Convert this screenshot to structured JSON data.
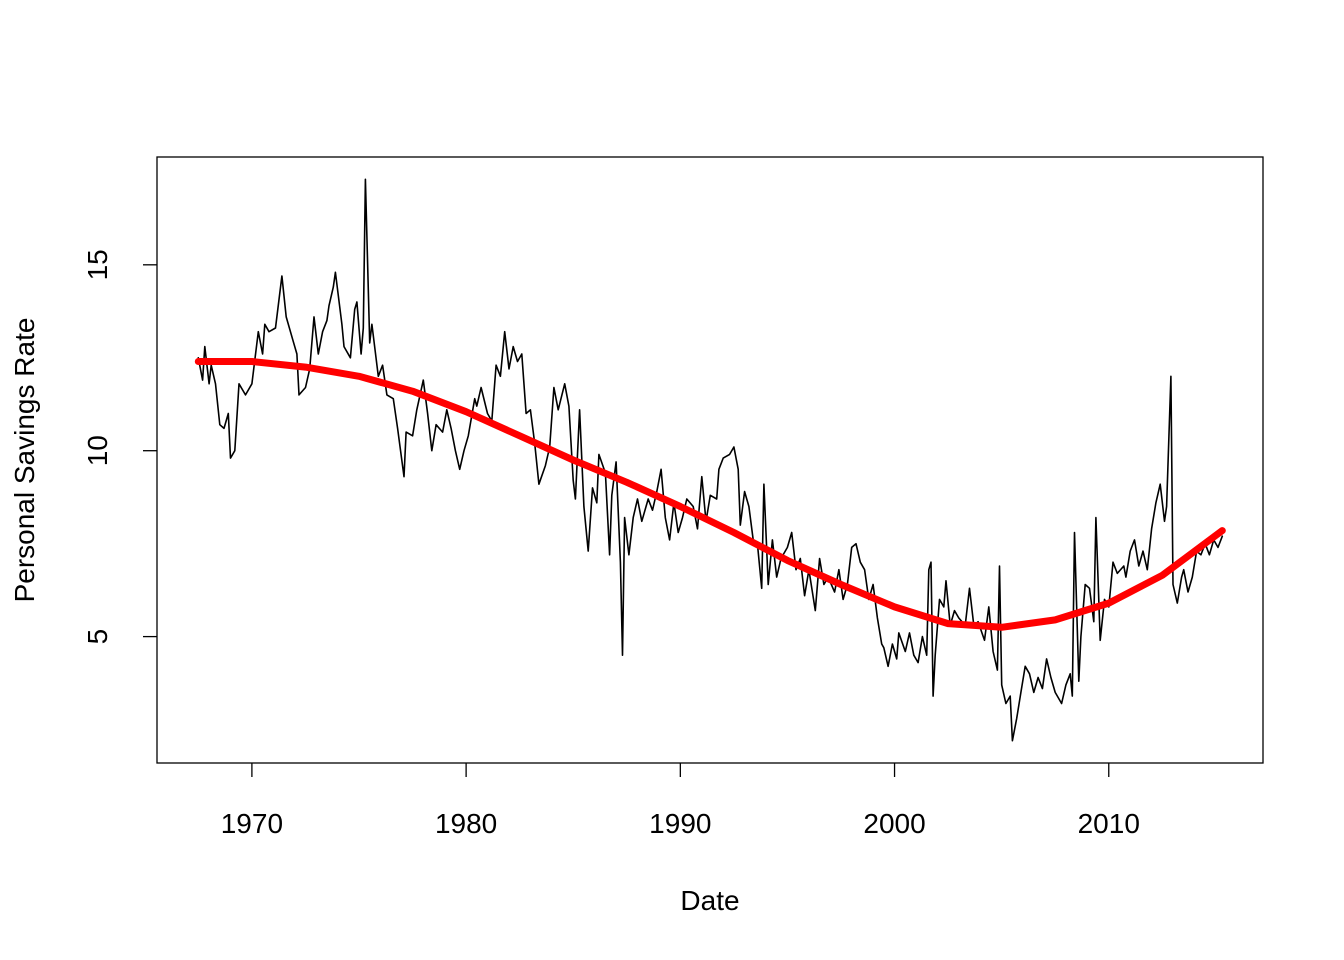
{
  "chart_data": {
    "type": "line",
    "title": "",
    "xlabel": "Date",
    "ylabel": "Personal Savings Rate",
    "xlim": [
      1965.57,
      2017.2
    ],
    "ylim": [
      1.6,
      17.9
    ],
    "x_ticks": [
      1970,
      1980,
      1990,
      2000,
      2010
    ],
    "y_ticks": [
      5,
      10,
      15
    ],
    "grid": false,
    "colors": {
      "series": "#000000",
      "smooth": "#ff0000"
    },
    "series": [
      {
        "style": "thin black line",
        "x": [
          1967.5,
          1967.7,
          1967.8,
          1968.0,
          1968.1,
          1968.3,
          1968.5,
          1968.7,
          1968.9,
          1969.0,
          1969.2,
          1969.4,
          1969.7,
          1970.0,
          1970.3,
          1970.5,
          1970.6,
          1970.8,
          1971.1,
          1971.4,
          1971.6,
          1971.9,
          1972.1,
          1972.2,
          1972.5,
          1972.7,
          1972.9,
          1973.1,
          1973.3,
          1973.5,
          1973.6,
          1973.8,
          1973.9,
          1974.2,
          1974.3,
          1974.6,
          1974.8,
          1974.9,
          1975.1,
          1975.2,
          1975.3,
          1975.5,
          1975.6,
          1975.9,
          1976.1,
          1976.3,
          1976.6,
          1976.8,
          1977.1,
          1977.2,
          1977.5,
          1977.7,
          1978.0,
          1978.2,
          1978.4,
          1978.6,
          1978.9,
          1979.1,
          1979.3,
          1979.5,
          1979.7,
          1979.9,
          1980.1,
          1980.4,
          1980.5,
          1980.7,
          1981.0,
          1981.2,
          1981.4,
          1981.6,
          1981.8,
          1982.0,
          1982.2,
          1982.4,
          1982.6,
          1982.8,
          1983.0,
          1983.2,
          1983.4,
          1983.7,
          1983.9,
          1984.1,
          1984.3,
          1984.6,
          1984.8,
          1985.0,
          1985.1,
          1985.3,
          1985.5,
          1985.7,
          1985.9,
          1986.1,
          1986.2,
          1986.5,
          1986.7,
          1986.8,
          1987.0,
          1987.2,
          1987.3,
          1987.4,
          1987.6,
          1987.8,
          1988.0,
          1988.2,
          1988.5,
          1988.7,
          1988.9,
          1989.1,
          1989.3,
          1989.5,
          1989.7,
          1989.9,
          1990.1,
          1990.3,
          1990.6,
          1990.8,
          1991.0,
          1991.2,
          1991.4,
          1991.7,
          1991.8,
          1992.0,
          1992.3,
          1992.5,
          1992.7,
          1992.8,
          1993.0,
          1993.2,
          1993.4,
          1993.6,
          1993.8,
          1993.9,
          1994.1,
          1994.3,
          1994.5,
          1994.7,
          1995.0,
          1995.2,
          1995.4,
          1995.6,
          1995.8,
          1996.0,
          1996.3,
          1996.5,
          1996.7,
          1996.9,
          1997.2,
          1997.4,
          1997.6,
          1997.8,
          1998.0,
          1998.2,
          1998.4,
          1998.6,
          1998.8,
          1999.0,
          1999.2,
          1999.4,
          1999.5,
          1999.7,
          1999.9,
          2000.1,
          2000.2,
          2000.5,
          2000.7,
          2000.9,
          2001.1,
          2001.3,
          2001.5,
          2001.6,
          2001.7,
          2001.8,
          2001.9,
          2002.1,
          2002.3,
          2002.4,
          2002.6,
          2002.8,
          2003.0,
          2003.3,
          2003.5,
          2003.7,
          2003.9,
          2004.2,
          2004.4,
          2004.6,
          2004.8,
          2004.9,
          2005.0,
          2005.2,
          2005.4,
          2005.5,
          2005.7,
          2005.9,
          2006.1,
          2006.3,
          2006.5,
          2006.7,
          2006.9,
          2007.1,
          2007.3,
          2007.5,
          2007.8,
          2008.0,
          2008.2,
          2008.3,
          2008.4,
          2008.6,
          2008.7,
          2008.9,
          2009.1,
          2009.3,
          2009.4,
          2009.6,
          2009.8,
          2010.0,
          2010.2,
          2010.4,
          2010.7,
          2010.8,
          2011.0,
          2011.2,
          2011.4,
          2011.6,
          2011.8,
          2012.0,
          2012.2,
          2012.4,
          2012.6,
          2012.7,
          2012.9,
          2013.0,
          2013.2,
          2013.4,
          2013.5,
          2013.7,
          2013.9,
          2014.1,
          2014.3,
          2014.5,
          2014.7,
          2014.9,
          2015.1,
          2015.3
        ],
        "y": [
          12.5,
          11.9,
          12.8,
          11.8,
          12.3,
          11.8,
          10.7,
          10.6,
          11.0,
          9.8,
          10.0,
          11.8,
          11.5,
          11.8,
          13.2,
          12.6,
          13.4,
          13.2,
          13.3,
          14.7,
          13.6,
          13.0,
          12.6,
          11.5,
          11.7,
          12.2,
          13.6,
          12.6,
          13.2,
          13.5,
          13.9,
          14.4,
          14.8,
          13.4,
          12.8,
          12.5,
          13.8,
          14.0,
          12.6,
          13.3,
          17.3,
          12.9,
          13.4,
          12.0,
          12.3,
          11.5,
          11.4,
          10.6,
          9.3,
          10.5,
          10.4,
          11.1,
          11.9,
          11.0,
          10.0,
          10.7,
          10.5,
          11.1,
          10.6,
          10.0,
          9.5,
          10.0,
          10.4,
          11.4,
          11.2,
          11.7,
          11.0,
          10.8,
          12.3,
          12.0,
          13.2,
          12.2,
          12.8,
          12.4,
          12.6,
          11.0,
          11.1,
          10.2,
          9.1,
          9.6,
          10.1,
          11.7,
          11.1,
          11.8,
          11.2,
          9.2,
          8.7,
          11.1,
          8.5,
          7.3,
          9.0,
          8.6,
          9.9,
          9.4,
          7.2,
          8.8,
          9.7,
          7.0,
          4.5,
          8.2,
          7.2,
          8.2,
          8.7,
          8.1,
          8.7,
          8.4,
          8.9,
          9.5,
          8.2,
          7.6,
          8.6,
          7.8,
          8.2,
          8.7,
          8.5,
          7.9,
          9.3,
          8.1,
          8.8,
          8.7,
          9.5,
          9.8,
          9.9,
          10.1,
          9.5,
          8.0,
          8.9,
          8.5,
          7.6,
          7.5,
          6.3,
          9.1,
          6.4,
          7.6,
          6.6,
          7.1,
          7.4,
          7.8,
          6.8,
          7.1,
          6.1,
          6.8,
          5.7,
          7.1,
          6.4,
          6.6,
          6.2,
          6.8,
          6.0,
          6.4,
          7.4,
          7.5,
          7.0,
          6.8,
          6.0,
          6.4,
          5.5,
          4.8,
          4.7,
          4.2,
          4.8,
          4.4,
          5.1,
          4.6,
          5.1,
          4.5,
          4.3,
          5.0,
          4.5,
          6.8,
          7.0,
          3.4,
          4.5,
          6.0,
          5.8,
          6.5,
          5.3,
          5.7,
          5.5,
          5.3,
          6.3,
          5.3,
          5.4,
          4.9,
          5.8,
          4.6,
          4.1,
          6.9,
          3.7,
          3.2,
          3.4,
          2.2,
          2.8,
          3.5,
          4.2,
          4.0,
          3.5,
          3.9,
          3.6,
          4.4,
          3.9,
          3.5,
          3.2,
          3.7,
          4.0,
          3.4,
          7.8,
          3.8,
          5.0,
          6.4,
          6.3,
          5.4,
          8.2,
          4.9,
          6.0,
          5.8,
          7.0,
          6.7,
          6.9,
          6.6,
          7.3,
          7.6,
          6.9,
          7.3,
          6.8,
          7.9,
          8.6,
          9.1,
          8.1,
          8.5,
          12.0,
          6.4,
          5.9,
          6.6,
          6.8,
          6.2,
          6.6,
          7.3,
          7.2,
          7.5,
          7.2,
          7.6,
          7.4,
          7.7
        ]
      },
      {
        "style": "thick red smooth fit",
        "x": [
          1967.5,
          1970,
          1972.5,
          1975,
          1977.5,
          1980,
          1982.5,
          1985,
          1987.5,
          1990,
          1992.5,
          1995,
          1997.5,
          2000,
          2002.5,
          2005,
          2007.5,
          2010,
          2012.5,
          2015.3
        ],
        "y": [
          12.4,
          12.4,
          12.25,
          12.0,
          11.6,
          11.05,
          10.4,
          9.75,
          9.15,
          8.5,
          7.8,
          7.05,
          6.4,
          5.8,
          5.35,
          5.25,
          5.45,
          5.9,
          6.65,
          7.85
        ]
      }
    ]
  }
}
